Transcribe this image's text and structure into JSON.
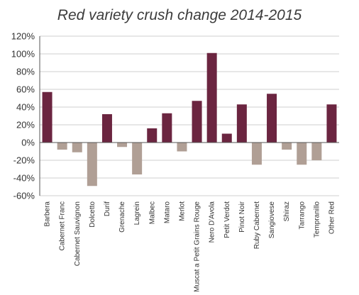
{
  "chart_data": {
    "type": "bar",
    "title": "Red variety crush change 2014-2015",
    "xlabel": "",
    "ylabel": "",
    "ylim": [
      -60,
      120
    ],
    "yticks": [
      120,
      100,
      80,
      60,
      40,
      20,
      0,
      -20,
      -40,
      -60
    ],
    "ytick_labels": [
      "120%",
      "100%",
      "80%",
      "60%",
      "40%",
      "20%",
      "0%",
      "-20%",
      "-40%",
      "-60%"
    ],
    "grid": true,
    "legend": "none",
    "categories": [
      "Barbera",
      "Cabernet Franc",
      "Cabernet Sauvignon",
      "Dolcetto",
      "Durif",
      "Grenache",
      "Lagrein",
      "Malbec",
      "Mataro",
      "Merlot",
      "Muscat a Petit Grains Rouge",
      "Nero D'Avola",
      "Petit Verdot",
      "Pinot Noir",
      "Ruby Cabernet",
      "Sangiovese",
      "Shiraz",
      "Tarrango",
      "Tempranillo",
      "Other Red"
    ],
    "values": [
      57,
      -8,
      -11,
      -49,
      32,
      -5,
      -36,
      16,
      33,
      -10,
      47,
      101,
      10,
      43,
      -25,
      55,
      -8,
      -25,
      -20,
      43
    ],
    "colors": {
      "positive": "#6b2540",
      "negative": "#b09f95",
      "grid": "#cfcfcf",
      "axis": "#555555"
    }
  }
}
